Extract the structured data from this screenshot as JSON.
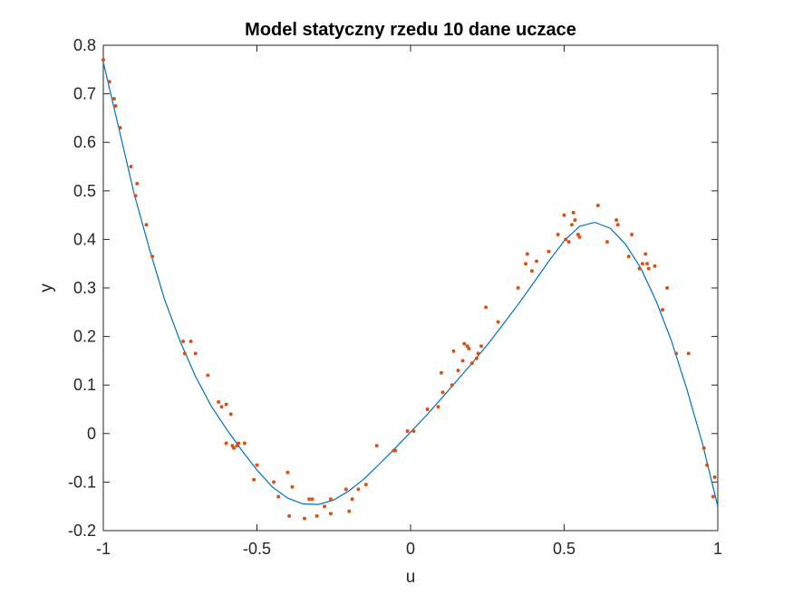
{
  "chart_data": {
    "type": "scatter",
    "title": "Model statyczny rzedu 10 dane uczace",
    "xlabel": "u",
    "ylabel": "y",
    "xlim": [
      -1,
      1
    ],
    "ylim": [
      -0.2,
      0.8
    ],
    "xticks": [
      "-1",
      "-0.5",
      "0",
      "0.5",
      "1"
    ],
    "yticks": [
      "-0.2",
      "-0.1",
      "0",
      "0.1",
      "0.2",
      "0.3",
      "0.4",
      "0.5",
      "0.6",
      "0.7",
      "0.8"
    ],
    "grid": false,
    "colors": {
      "model": "#0072BD",
      "data": "#D95319"
    },
    "series": [
      {
        "kind": "points",
        "x": [
          -1.0,
          -0.98,
          -0.965,
          -0.96,
          -0.945,
          -0.91,
          -0.895,
          -0.89,
          -0.86,
          -0.84,
          -0.74,
          -0.735,
          -0.715,
          -0.7,
          -0.66,
          -0.625,
          -0.615,
          -0.6,
          -0.6,
          -0.585,
          -0.58,
          -0.575,
          -0.565,
          -0.56,
          -0.54,
          -0.51,
          -0.5,
          -0.445,
          -0.43,
          -0.4,
          -0.395,
          -0.385,
          -0.345,
          -0.33,
          -0.32,
          -0.305,
          -0.28,
          -0.26,
          -0.26,
          -0.21,
          -0.2,
          -0.19,
          -0.17,
          -0.145,
          -0.11,
          -0.055,
          -0.05,
          -0.01,
          0.01,
          0.055,
          0.09,
          0.1,
          0.105,
          0.135,
          0.14,
          0.155,
          0.17,
          0.175,
          0.185,
          0.19,
          0.2,
          0.215,
          0.22,
          0.23,
          0.245,
          0.285,
          0.35,
          0.375,
          0.38,
          0.395,
          0.41,
          0.45,
          0.48,
          0.5,
          0.505,
          0.515,
          0.525,
          0.53,
          0.535,
          0.545,
          0.55,
          0.61,
          0.64,
          0.67,
          0.675,
          0.71,
          0.72,
          0.745,
          0.755,
          0.765,
          0.77,
          0.775,
          0.795,
          0.82,
          0.835,
          0.865,
          0.905,
          0.955,
          0.965,
          0.985,
          0.99
        ],
        "y": [
          0.77,
          0.725,
          0.69,
          0.675,
          0.63,
          0.55,
          0.49,
          0.515,
          0.43,
          0.365,
          0.19,
          0.165,
          0.19,
          0.165,
          0.12,
          0.065,
          0.055,
          0.06,
          -0.02,
          0.04,
          -0.025,
          -0.03,
          -0.025,
          -0.02,
          -0.02,
          -0.095,
          -0.065,
          -0.1,
          -0.13,
          -0.08,
          -0.17,
          -0.11,
          -0.175,
          -0.135,
          -0.135,
          -0.17,
          -0.15,
          -0.165,
          -0.135,
          -0.115,
          -0.16,
          -0.135,
          -0.115,
          -0.105,
          -0.025,
          -0.035,
          -0.035,
          0.005,
          0.005,
          0.05,
          0.055,
          0.125,
          0.085,
          0.1,
          0.17,
          0.13,
          0.15,
          0.185,
          0.18,
          0.175,
          0.145,
          0.155,
          0.165,
          0.18,
          0.26,
          0.23,
          0.3,
          0.35,
          0.37,
          0.335,
          0.355,
          0.375,
          0.41,
          0.45,
          0.4,
          0.395,
          0.43,
          0.455,
          0.44,
          0.41,
          0.405,
          0.47,
          0.395,
          0.44,
          0.43,
          0.365,
          0.41,
          0.34,
          0.35,
          0.37,
          0.35,
          0.34,
          0.345,
          0.255,
          0.3,
          0.165,
          0.165,
          -0.03,
          -0.065,
          -0.13,
          -0.09
        ]
      },
      {
        "kind": "line",
        "x": [
          -1.0,
          -0.95,
          -0.9,
          -0.85,
          -0.8,
          -0.75,
          -0.7,
          -0.65,
          -0.6,
          -0.55,
          -0.5,
          -0.45,
          -0.4,
          -0.35,
          -0.3,
          -0.25,
          -0.2,
          -0.15,
          -0.1,
          -0.05,
          0.0,
          0.05,
          0.1,
          0.15,
          0.2,
          0.25,
          0.3,
          0.35,
          0.4,
          0.45,
          0.5,
          0.55,
          0.6,
          0.65,
          0.7,
          0.75,
          0.8,
          0.85,
          0.9,
          0.95,
          1.0
        ],
        "y": [
          0.765,
          0.63,
          0.495,
          0.38,
          0.275,
          0.19,
          0.118,
          0.058,
          0.01,
          -0.034,
          -0.075,
          -0.11,
          -0.133,
          -0.145,
          -0.146,
          -0.137,
          -0.118,
          -0.093,
          -0.062,
          -0.03,
          0.003,
          0.036,
          0.072,
          0.108,
          0.145,
          0.183,
          0.224,
          0.266,
          0.31,
          0.355,
          0.397,
          0.427,
          0.435,
          0.423,
          0.39,
          0.34,
          0.272,
          0.19,
          0.09,
          -0.02,
          -0.15
        ]
      }
    ]
  }
}
